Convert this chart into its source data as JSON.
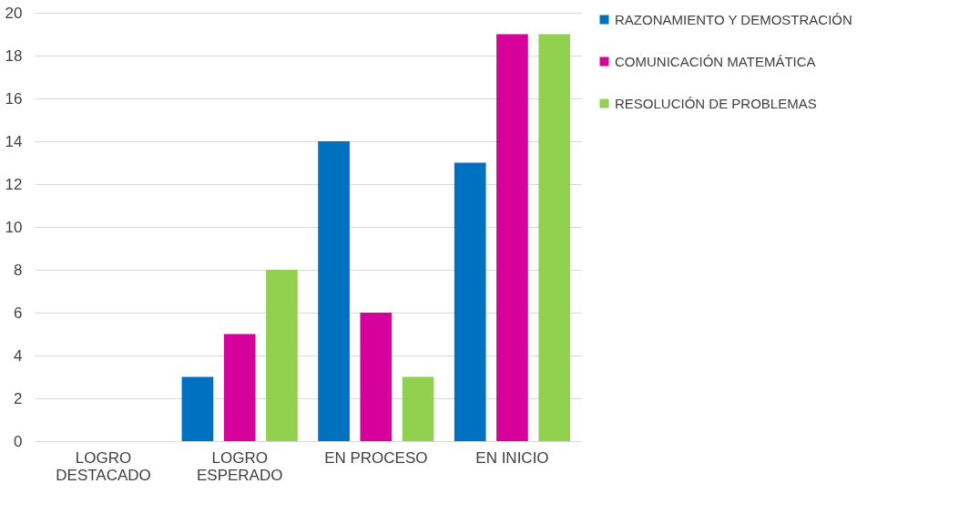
{
  "chart_data": {
    "type": "bar",
    "categories": [
      "LOGRO DESTACADO",
      "LOGRO ESPERADO",
      "EN PROCESO",
      "EN INICIO"
    ],
    "series": [
      {
        "name": "RAZONAMIENTO Y DEMOSTRACIÓN",
        "color": "#0070c0",
        "values": [
          0,
          3,
          14,
          13
        ]
      },
      {
        "name": "COMUNICACIÓN MATEMÁTICA",
        "color": "#d6009a",
        "values": [
          0,
          5,
          6,
          19
        ]
      },
      {
        "name": "RESOLUCIÓN DE PROBLEMAS",
        "color": "#92d050",
        "values": [
          0,
          8,
          3,
          19
        ]
      }
    ],
    "ylim": [
      0,
      20
    ],
    "yticks": [
      0,
      2,
      4,
      6,
      8,
      10,
      12,
      14,
      16,
      18,
      20
    ],
    "grid": "y",
    "legend": "right"
  }
}
